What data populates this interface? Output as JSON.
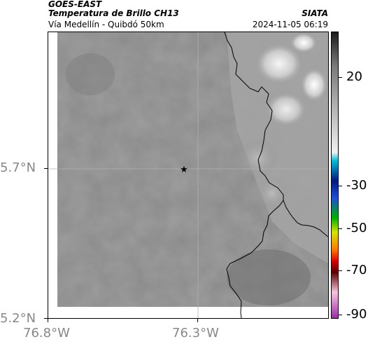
{
  "header": {
    "satellite": "GOES-EAST",
    "product": "Temperatura de Brillo CH13",
    "region": "Vía Medellín - Quibdó 50km",
    "organization": "SIATA",
    "timestamp": "2024-11-05 06:19"
  },
  "axes": {
    "y_ticks": [
      "5.7°N",
      "5.2°N"
    ],
    "x_ticks": [
      "76.8°W",
      "76.3°W"
    ]
  },
  "colorbar": {
    "labels": [
      "20",
      "-30",
      "-50",
      "-70",
      "-90"
    ],
    "palette": [
      "#1a1a1a",
      "#7a7a7a",
      "#f0f0f0",
      "#00bcd4",
      "#001a80",
      "#1e4fd8",
      "#00b000",
      "#d6e400",
      "#ff7a00",
      "#e00000",
      "#5a0000",
      "#f7c3dc",
      "#9b2da8"
    ]
  },
  "map": {
    "marker_icon": "star-icon",
    "background_color": "#8a8a8a"
  }
}
